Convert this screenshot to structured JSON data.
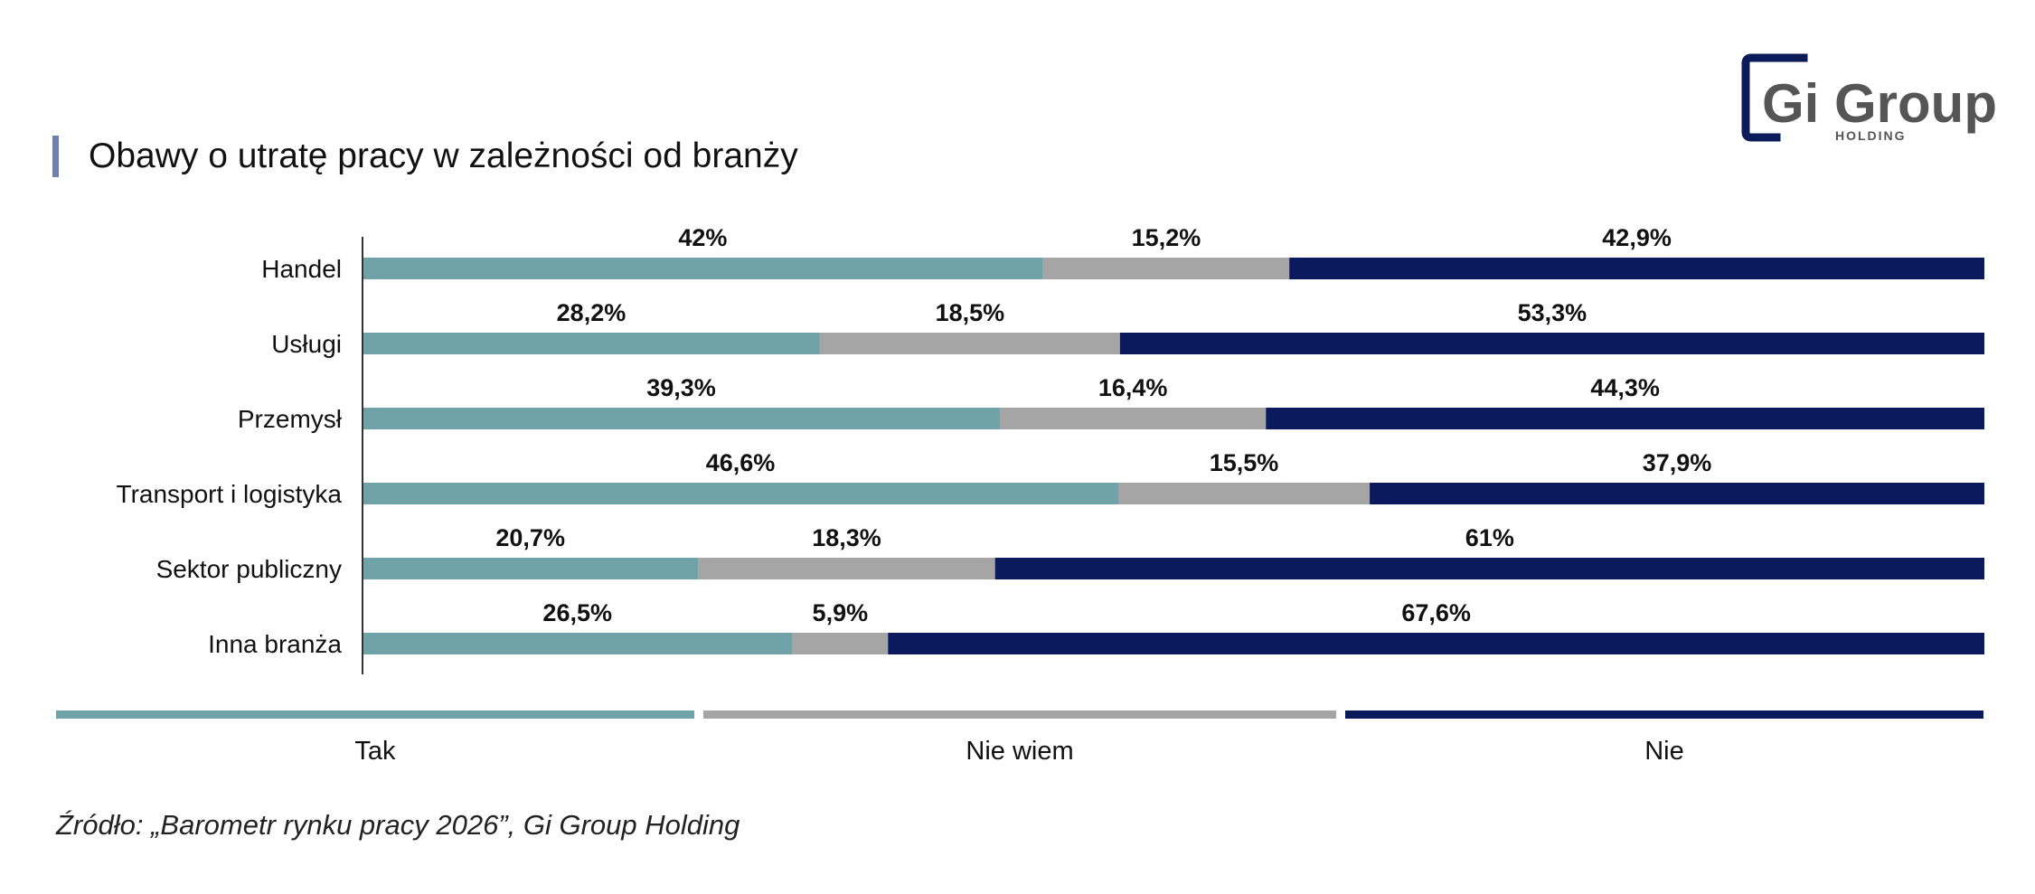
{
  "title": "Obawy o utratę pracy w zależności od branży",
  "logo": {
    "main_text": "Gi Group",
    "sub_text": "HOLDING",
    "color": "#0b1a59",
    "text_color": "#555555"
  },
  "colors": {
    "tak": "#6fa3a7",
    "nie_wiem": "#a5a5a5",
    "nie": "#0a1a5c",
    "title_bar": "#6f7fae"
  },
  "legend": [
    {
      "label": "Tak"
    },
    {
      "label": "Nie wiem"
    },
    {
      "label": "Nie"
    }
  ],
  "source": "Źródło: „Barometr rynku pracy 2026”, Gi Group Holding",
  "chart_data": {
    "type": "bar",
    "orientation": "horizontal",
    "stacked": true,
    "categories": [
      "Handel",
      "Usługi",
      "Przemysł",
      "Transport i logistyka",
      "Sektor publiczny",
      "Inna branża"
    ],
    "series": [
      {
        "name": "Tak",
        "values": [
          42,
          28.2,
          39.3,
          46.6,
          20.7,
          26.5
        ],
        "labels": [
          "42%",
          "28,2%",
          "39,3%",
          "46,6%",
          "20,7%",
          "26,5%"
        ]
      },
      {
        "name": "Nie wiem",
        "values": [
          15.2,
          18.5,
          16.4,
          15.5,
          18.3,
          5.9
        ],
        "labels": [
          "15,2%",
          "18,5%",
          "16,4%",
          "15,5%",
          "18,3%",
          "5,9%"
        ]
      },
      {
        "name": "Nie",
        "values": [
          42.9,
          53.3,
          44.3,
          37.9,
          61,
          67.6
        ],
        "labels": [
          "42,9%",
          "53,3%",
          "44,3%",
          "37,9%",
          "61%",
          "67,6%"
        ]
      }
    ],
    "xlim": [
      0,
      100
    ],
    "grid": false,
    "legend_position": "bottom"
  }
}
